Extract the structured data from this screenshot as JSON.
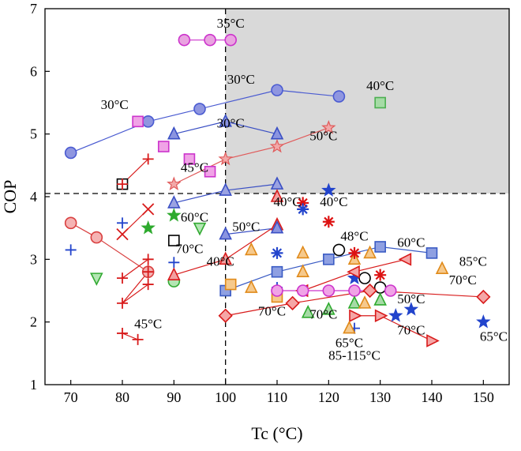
{
  "chart_data": {
    "type": "scatter",
    "xlabel": "Tc (°C)",
    "ylabel": "COP",
    "xlim": [
      65,
      155
    ],
    "ylim": [
      1,
      7
    ],
    "xticks": [
      70,
      80,
      90,
      100,
      110,
      120,
      130,
      140,
      150
    ],
    "yticks": [
      1,
      2,
      3,
      4,
      5,
      6,
      7
    ],
    "shaded_region": {
      "x": [
        100,
        155
      ],
      "y": [
        4.05,
        7
      ],
      "color": "#d9d9d9"
    },
    "reference_lines": {
      "x": 100,
      "y": 4.05
    },
    "series": [
      {
        "name": "blue-circles",
        "marker": "circle",
        "color": "#4a5bd1",
        "fill": "#8f96e0",
        "connected": true,
        "x": [
          70,
          85,
          95,
          110,
          122
        ],
        "y": [
          4.7,
          5.2,
          5.4,
          5.7,
          5.6
        ]
      },
      {
        "name": "magenta-circles",
        "marker": "circle",
        "color": "#cc33cc",
        "fill": "#e9a3e0",
        "connected": true,
        "x": [
          92,
          97,
          101
        ],
        "y": [
          6.5,
          6.5,
          6.5
        ]
      },
      {
        "name": "blue-triangles",
        "marker": "triangle",
        "color": "#3a4fc4",
        "fill": "#8a94e0",
        "connected": true,
        "x": [
          90,
          100,
          110
        ],
        "y": [
          5.0,
          5.2,
          5.0
        ]
      },
      {
        "name": "blue-triangles-lower",
        "marker": "triangle",
        "color": "#3a4fc4",
        "fill": "#9aa2e2",
        "connected": true,
        "x": [
          90,
          100,
          110
        ],
        "y": [
          3.9,
          4.1,
          4.2
        ]
      },
      {
        "name": "magenta-squares",
        "marker": "square",
        "color": "#cc33cc",
        "fill": "#f0a3e6",
        "connected": false,
        "x": [
          83,
          88,
          93,
          97
        ],
        "y": [
          5.2,
          4.8,
          4.6,
          4.4
        ]
      },
      {
        "name": "red-stars",
        "marker": "star",
        "color": "#e05a5a",
        "fill": "#f2a8a8",
        "connected": true,
        "x": [
          90,
          100,
          110,
          120
        ],
        "y": [
          4.2,
          4.6,
          4.8,
          5.1
        ]
      },
      {
        "name": "green-square",
        "marker": "square",
        "color": "#4caf50",
        "fill": "#a6dba6",
        "connected": false,
        "x": [
          130
        ],
        "y": [
          5.5
        ]
      },
      {
        "name": "black-square",
        "marker": "square",
        "color": "#000000",
        "fill": "#ffffff",
        "connected": false,
        "x": [
          80,
          90
        ],
        "y": [
          4.2,
          3.3
        ]
      },
      {
        "name": "red-plus-line",
        "marker": "plus",
        "color": "#d81b1b",
        "fill": "none",
        "connected": true,
        "x": [
          80,
          85
        ],
        "y": [
          4.2,
          4.6
        ]
      },
      {
        "name": "red-x",
        "marker": "x",
        "color": "#d81b1b",
        "fill": "none",
        "connected": true,
        "x": [
          80,
          85
        ],
        "y": [
          3.4,
          3.8
        ]
      },
      {
        "name": "red-circles-left",
        "marker": "circle",
        "color": "#d94040",
        "fill": "#f5b3b3",
        "connected": true,
        "x": [
          70,
          75,
          85
        ],
        "y": [
          3.58,
          3.35,
          2.8
        ]
      },
      {
        "name": "red-plus-series",
        "marker": "plus",
        "color": "#d81b1b",
        "fill": "none",
        "connected": true,
        "x": [
          80,
          85,
          85,
          80,
          85
        ],
        "y": [
          2.7,
          3.0,
          2.6,
          2.3,
          2.8
        ]
      },
      {
        "name": "red-plus-45",
        "marker": "plus",
        "color": "#d81b1b",
        "fill": "none",
        "connected": true,
        "x": [
          80,
          83
        ],
        "y": [
          1.82,
          1.72
        ]
      },
      {
        "name": "blue-plus",
        "marker": "plus",
        "color": "#2244cc",
        "fill": "none",
        "connected": false,
        "x": [
          70,
          80,
          90,
          110,
          125
        ],
        "y": [
          3.15,
          3.58,
          2.95,
          2.55,
          1.9
        ]
      },
      {
        "name": "green-stars",
        "marker": "star",
        "color": "#2eaa2e",
        "fill": "#2eaa2e",
        "connected": false,
        "x": [
          85,
          90
        ],
        "y": [
          3.5,
          3.7
        ]
      },
      {
        "name": "green-triangles-down",
        "marker": "triangle-down",
        "color": "#33aa33",
        "fill": "#b3e6b3",
        "connected": false,
        "x": [
          75,
          95
        ],
        "y": [
          2.7,
          3.5
        ]
      },
      {
        "name": "green-circles",
        "marker": "circle",
        "color": "#33aa33",
        "fill": "#b3e6b3",
        "connected": false,
        "x": [
          90
        ],
        "y": [
          2.65
        ]
      },
      {
        "name": "red-triangles",
        "marker": "triangle",
        "color": "#d81b1b",
        "fill": "#f2a0a0",
        "connected": true,
        "x": [
          90,
          100,
          110
        ],
        "y": [
          2.75,
          3.0,
          3.55
        ]
      },
      {
        "name": "red-triangles-upper",
        "marker": "triangle",
        "color": "#d81b1b",
        "fill": "#f2a0a0",
        "connected": false,
        "x": [
          110
        ],
        "y": [
          4.0
        ]
      },
      {
        "name": "blue-squares",
        "marker": "square",
        "color": "#3a5bc4",
        "fill": "#8fa0e2",
        "connected": true,
        "x": [
          100,
          110,
          120,
          130,
          140
        ],
        "y": [
          2.5,
          2.8,
          3.0,
          3.2,
          3.1
        ]
      },
      {
        "name": "blue-triangle-50",
        "marker": "triangle",
        "color": "#3a4fc4",
        "fill": "#8a94e0",
        "connected": true,
        "x": [
          100,
          110
        ],
        "y": [
          3.4,
          3.5
        ]
      },
      {
        "name": "orange-triangles",
        "marker": "triangle",
        "color": "#e08a1a",
        "fill": "#f6c98c",
        "connected": false,
        "x": [
          105,
          115,
          105,
          115,
          125,
          128,
          142
        ],
        "y": [
          3.15,
          3.1,
          2.55,
          2.8,
          3.0,
          3.1,
          2.85
        ]
      },
      {
        "name": "orange-squares",
        "marker": "square",
        "color": "#e08a1a",
        "fill": "#f6c98c",
        "connected": false,
        "x": [
          101,
          110
        ],
        "y": [
          2.6,
          2.4
        ]
      },
      {
        "name": "red-asterisks",
        "marker": "asterisk",
        "color": "#dd1111",
        "fill": "#dd1111",
        "connected": false,
        "x": [
          115,
          120,
          125,
          130
        ],
        "y": [
          3.9,
          3.6,
          3.1,
          2.75
        ]
      },
      {
        "name": "blue-asterisks",
        "marker": "asterisk",
        "color": "#2244cc",
        "fill": "#2244cc",
        "connected": false,
        "x": [
          110,
          115
        ],
        "y": [
          3.1,
          3.8
        ]
      },
      {
        "name": "blue-stars",
        "marker": "star",
        "color": "#2244cc",
        "fill": "#2244cc",
        "connected": false,
        "x": [
          120,
          125,
          133,
          136,
          150
        ],
        "y": [
          4.1,
          2.7,
          2.1,
          2.2,
          2.0
        ]
      },
      {
        "name": "black-circles",
        "marker": "circle",
        "color": "#000000",
        "fill": "#ffffff",
        "connected": false,
        "x": [
          122,
          127,
          130
        ],
        "y": [
          3.15,
          2.7,
          2.55
        ]
      },
      {
        "name": "red-diamonds",
        "marker": "diamond",
        "color": "#d81b1b",
        "fill": "#f5a6a6",
        "connected": true,
        "x": [
          100,
          113,
          128,
          150
        ],
        "y": [
          2.1,
          2.3,
          2.5,
          2.4
        ]
      },
      {
        "name": "red-left-triangles",
        "marker": "triangle-left",
        "color": "#d81b1b",
        "fill": "#f5a6a6",
        "connected": true,
        "x": [
          115,
          125,
          135
        ],
        "y": [
          2.5,
          2.8,
          3.0
        ]
      },
      {
        "name": "red-right-triangles",
        "marker": "triangle-right",
        "color": "#d81b1b",
        "fill": "#f5a6a6",
        "connected": true,
        "x": [
          125,
          130,
          140
        ],
        "y": [
          2.1,
          2.1,
          1.7
        ]
      },
      {
        "name": "magenta-circles-low",
        "marker": "circle",
        "color": "#cc33cc",
        "fill": "#f0a3e6",
        "connected": true,
        "x": [
          110,
          115,
          120,
          125,
          132
        ],
        "y": [
          2.5,
          2.5,
          2.5,
          2.5,
          2.5
        ]
      },
      {
        "name": "green-triangles-low",
        "marker": "triangle",
        "color": "#2eaa2e",
        "fill": "#a6dba6",
        "connected": false,
        "x": [
          116,
          120,
          125,
          130
        ],
        "y": [
          2.15,
          2.2,
          2.3,
          2.35
        ]
      },
      {
        "name": "orange-triangles-low",
        "marker": "triangle",
        "color": "#e08a1a",
        "fill": "#f6c98c",
        "connected": false,
        "x": [
          124,
          127
        ],
        "y": [
          1.9,
          2.3
        ]
      }
    ],
    "annotations": [
      {
        "text": "35°C",
        "x": 101,
        "y": 6.7
      },
      {
        "text": "30°C",
        "x": 103,
        "y": 5.8
      },
      {
        "text": "40°C",
        "x": 130,
        "y": 5.7
      },
      {
        "text": "30°C",
        "x": 78.5,
        "y": 5.4
      },
      {
        "text": "30°C",
        "x": 101,
        "y": 5.1
      },
      {
        "text": "50°C",
        "x": 119,
        "y": 4.9
      },
      {
        "text": "45°C",
        "x": 94,
        "y": 4.4
      },
      {
        "text": "40°C",
        "x": 112,
        "y": 3.85
      },
      {
        "text": "40°C",
        "x": 121,
        "y": 3.85
      },
      {
        "text": "60°C",
        "x": 94,
        "y": 3.6
      },
      {
        "text": "50°C",
        "x": 104,
        "y": 3.45
      },
      {
        "text": "70°C",
        "x": 93,
        "y": 3.1
      },
      {
        "text": "48°C",
        "x": 125,
        "y": 3.3
      },
      {
        "text": "60°C",
        "x": 136,
        "y": 3.2
      },
      {
        "text": "40°C",
        "x": 99,
        "y": 2.9
      },
      {
        "text": "85°C",
        "x": 148,
        "y": 2.9
      },
      {
        "text": "70°C",
        "x": 146,
        "y": 2.6
      },
      {
        "text": "50°C",
        "x": 136,
        "y": 2.3
      },
      {
        "text": "45°C",
        "x": 85,
        "y": 1.9
      },
      {
        "text": "70°C",
        "x": 109,
        "y": 2.1
      },
      {
        "text": "70°C",
        "x": 119,
        "y": 2.05
      },
      {
        "text": "70°C",
        "x": 136,
        "y": 1.8
      },
      {
        "text": "65°C",
        "x": 124,
        "y": 1.6
      },
      {
        "text": "85-115°C",
        "x": 125,
        "y": 1.4
      },
      {
        "text": "65°C",
        "x": 152,
        "y": 1.7
      }
    ]
  }
}
